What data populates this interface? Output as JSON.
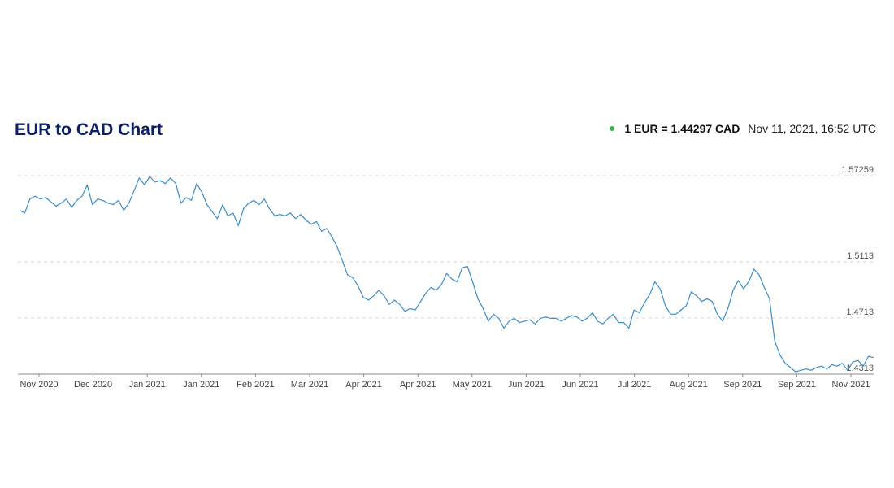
{
  "header": {
    "title": "EUR to CAD Chart",
    "rate_text": "1 EUR = 1.44297 CAD",
    "timestamp": "Nov 11, 2021, 16:52 UTC",
    "status_color": "#34b34a"
  },
  "colors": {
    "line": "#3a8ec9",
    "grid": "#d6d6d6",
    "title": "#0b1f66"
  },
  "chart_data": {
    "type": "line",
    "title": "EUR to CAD Chart",
    "xlabel": "",
    "ylabel": "",
    "grid": true,
    "y_ticks": [
      {
        "label": "1.57259",
        "value": 1.57259
      },
      {
        "label": "1.5113",
        "value": 1.5113
      },
      {
        "label": "1.4713",
        "value": 1.4713
      },
      {
        "label": "1.4313",
        "value": 1.4313
      }
    ],
    "x_ticks": [
      "Nov 2020",
      "Dec 2020",
      "Jan 2021",
      "Jan 2021",
      "Feb 2021",
      "Mar 2021",
      "Apr 2021",
      "Apr 2021",
      "May 2021",
      "Jun 2021",
      "Jun 2021",
      "Jul 2021",
      "Aug 2021",
      "Sep 2021",
      "Sep 2021",
      "Nov 2021"
    ],
    "ylim": [
      1.4313,
      1.57259
    ],
    "series": [
      {
        "values": [
          1.548,
          1.546,
          1.556,
          1.558,
          1.556,
          1.557,
          1.554,
          1.551,
          1.553,
          1.556,
          1.55,
          1.555,
          1.558,
          1.566,
          1.552,
          1.556,
          1.555,
          1.553,
          1.552,
          1.555,
          1.548,
          1.553,
          1.562,
          1.571,
          1.566,
          1.572,
          1.568,
          1.569,
          1.567,
          1.571,
          1.567,
          1.553,
          1.557,
          1.555,
          1.567,
          1.561,
          1.552,
          1.547,
          1.542,
          1.552,
          1.544,
          1.546,
          1.537,
          1.549,
          1.553,
          1.555,
          1.552,
          1.556,
          1.549,
          1.544,
          1.545,
          1.544,
          1.546,
          1.542,
          1.545,
          1.541,
          1.538,
          1.54,
          1.533,
          1.535,
          1.529,
          1.522,
          1.512,
          1.502,
          1.5,
          1.494,
          1.486,
          1.484,
          1.487,
          1.491,
          1.487,
          1.481,
          1.484,
          1.481,
          1.476,
          1.478,
          1.477,
          1.483,
          1.489,
          1.493,
          1.491,
          1.495,
          1.503,
          1.499,
          1.497,
          1.507,
          1.508,
          1.497,
          1.485,
          1.478,
          1.469,
          1.474,
          1.471,
          1.464,
          1.469,
          1.471,
          1.468,
          1.469,
          1.47,
          1.467,
          1.471,
          1.472,
          1.471,
          1.471,
          1.469,
          1.471,
          1.473,
          1.472,
          1.469,
          1.471,
          1.475,
          1.469,
          1.467,
          1.471,
          1.474,
          1.468,
          1.468,
          1.464,
          1.477,
          1.475,
          1.482,
          1.488,
          1.497,
          1.492,
          1.48,
          1.474,
          1.474,
          1.477,
          1.48,
          1.49,
          1.487,
          1.483,
          1.485,
          1.483,
          1.474,
          1.469,
          1.478,
          1.491,
          1.498,
          1.492,
          1.497,
          1.506,
          1.502,
          1.493,
          1.485,
          1.455,
          1.445,
          1.439,
          1.436,
          1.433,
          1.434,
          1.435,
          1.434,
          1.436,
          1.437,
          1.435,
          1.438,
          1.437,
          1.439,
          1.434,
          1.44,
          1.441,
          1.437,
          1.444,
          1.443
        ]
      }
    ],
    "legend": "none"
  }
}
